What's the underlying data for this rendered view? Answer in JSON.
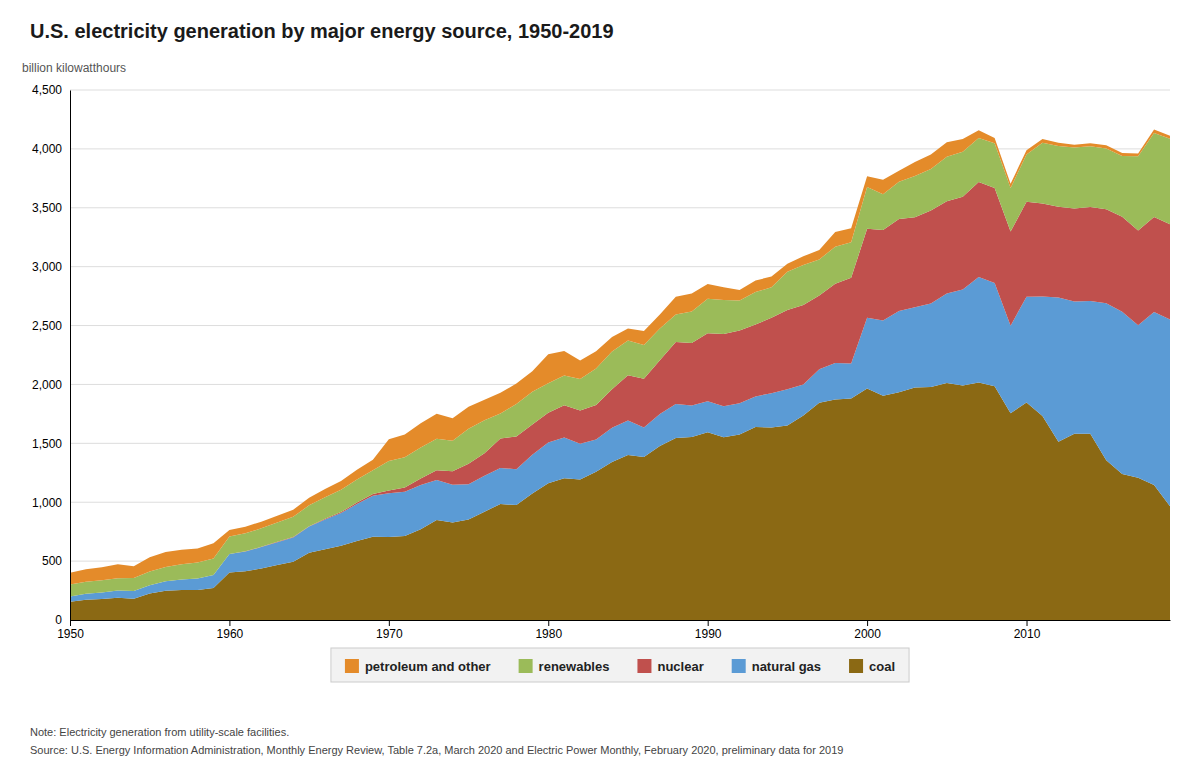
{
  "chart_data": {
    "type": "area",
    "stacked": true,
    "title": "U.S. electricity generation by major energy source, 1950-2019",
    "y_label": "billion kilowatthours",
    "annotations": [
      "Note: Electricity generation from utility-scale facilities.",
      "Source: U.S. Energy Information Administration, Monthly Energy Review, Table 7.2a, March 2020 and Electric Power Monthly, February 2020, preliminary data for 2019"
    ],
    "grid": "y",
    "legend": "bottom",
    "xlim": [
      1950,
      2019
    ],
    "xticks": [
      1950,
      1960,
      1970,
      1980,
      1990,
      2000,
      2010
    ],
    "ylim": [
      0,
      4500
    ],
    "yticks": [
      0,
      500,
      {
        "value": 1000,
        "label": "1,000"
      },
      {
        "value": 1500,
        "label": "1,500"
      },
      {
        "value": 2000,
        "label": "2,000"
      },
      {
        "value": 2500,
        "label": "2,500"
      },
      {
        "value": 3000,
        "label": "3,000"
      },
      {
        "value": 3500,
        "label": "3,500"
      },
      {
        "value": 4000,
        "label": "4,000"
      },
      {
        "value": 4500,
        "label": "4,500"
      }
    ],
    "x": [
      1950,
      1951,
      1952,
      1953,
      1954,
      1955,
      1956,
      1957,
      1958,
      1959,
      1960,
      1961,
      1962,
      1963,
      1964,
      1965,
      1966,
      1967,
      1968,
      1969,
      1970,
      1971,
      1972,
      1973,
      1974,
      1975,
      1976,
      1977,
      1978,
      1979,
      1980,
      1981,
      1982,
      1983,
      1984,
      1985,
      1986,
      1987,
      1988,
      1989,
      1990,
      1991,
      1992,
      1993,
      1994,
      1995,
      1996,
      1997,
      1998,
      1999,
      2000,
      2001,
      2002,
      2003,
      2004,
      2005,
      2006,
      2007,
      2008,
      2009,
      2010,
      2011,
      2012,
      2013,
      2014,
      2015,
      2016,
      2017,
      2018,
      2019
    ],
    "series": [
      {
        "name": "coal",
        "color": "#8B6914",
        "values": [
          155,
          172,
          178,
          188,
          181,
          224,
          248,
          255,
          255,
          272,
          403,
          413,
          437,
          466,
          494,
          571,
          600,
          630,
          671,
          706,
          704,
          713,
          771,
          848,
          828,
          853,
          920,
          985,
          976,
          1075,
          1162,
          1203,
          1192,
          1259,
          1342,
          1402,
          1385,
          1477,
          1546,
          1554,
          1594,
          1551,
          1576,
          1639,
          1635,
          1652,
          1737,
          1845,
          1873,
          1881,
          1966,
          1904,
          1933,
          1973,
          1978,
          2013,
          1990,
          2016,
          1985,
          1755,
          1847,
          1733,
          1514,
          1581,
          1582,
          1357,
          1240,
          1207,
          1146,
          966
        ]
      },
      {
        "name": "natural gas",
        "color": "#5B9BD5",
        "values": [
          45,
          50,
          55,
          62,
          65,
          72,
          81,
          89,
          98,
          110,
          157,
          168,
          182,
          195,
          207,
          222,
          253,
          278,
          313,
          349,
          373,
          375,
          376,
          341,
          320,
          300,
          305,
          305,
          305,
          329,
          346,
          347,
          305,
          273,
          290,
          292,
          249,
          273,
          287,
          268,
          264,
          264,
          264,
          259,
          291,
          307,
          263,
          283,
          309,
          296,
          601,
          639,
          691,
          682,
          710,
          760,
          816,
          897,
          876,
          744,
          898,
          1013,
          1225,
          1124,
          1127,
          1333,
          1378,
          1296,
          1469,
          1586
        ]
      },
      {
        "name": "nuclear",
        "color": "#C0504D",
        "values": [
          0,
          0,
          0,
          0,
          0,
          0,
          0,
          0,
          0,
          0,
          1,
          2,
          2,
          3,
          3,
          4,
          6,
          8,
          13,
          14,
          22,
          38,
          54,
          83,
          114,
          173,
          191,
          251,
          276,
          255,
          251,
          273,
          282,
          294,
          328,
          384,
          414,
          455,
          527,
          529,
          577,
          613,
          619,
          610,
          641,
          673,
          675,
          628,
          673,
          728,
          754,
          769,
          780,
          764,
          788,
          782,
          787,
          806,
          806,
          799,
          807,
          790,
          769,
          789,
          797,
          797,
          805,
          805,
          807,
          809
        ]
      },
      {
        "name": "renewables",
        "color": "#9BBB59",
        "values": [
          101,
          102,
          105,
          105,
          110,
          115,
          120,
          130,
          135,
          140,
          149,
          153,
          157,
          163,
          172,
          177,
          183,
          190,
          196,
          202,
          251,
          256,
          263,
          267,
          259,
          298,
          280,
          213,
          276,
          279,
          251,
          254,
          267,
          309,
          320,
          295,
          286,
          270,
          233,
          268,
          292,
          289,
          253,
          276,
          258,
          325,
          340,
          305,
          315,
          302,
          356,
          302,
          316,
          350,
          354,
          379,
          383,
          374,
          380,
          370,
          400,
          517,
          517,
          517,
          517,
          517,
          517,
          630,
          713,
          726
        ]
      },
      {
        "name": "petroleum and other",
        "color": "#E48B2A",
        "values": [
          100,
          107,
          110,
          118,
          100,
          122,
          128,
          123,
          120,
          130,
          54,
          56,
          57,
          58,
          60,
          65,
          71,
          75,
          82,
          90,
          184,
          192,
          206,
          213,
          191,
          186,
          175,
          175,
          174,
          174,
          246,
          206,
          158,
          147,
          122,
          102,
          120,
          118,
          152,
          154,
          126,
          109,
          89,
          99,
          91,
          68,
          73,
          81,
          124,
          119,
          90,
          124,
          94,
          119,
          122,
          122,
          108,
          65,
          46,
          36,
          37,
          30,
          27,
          25,
          25,
          27,
          25,
          22,
          30,
          24
        ]
      }
    ]
  }
}
